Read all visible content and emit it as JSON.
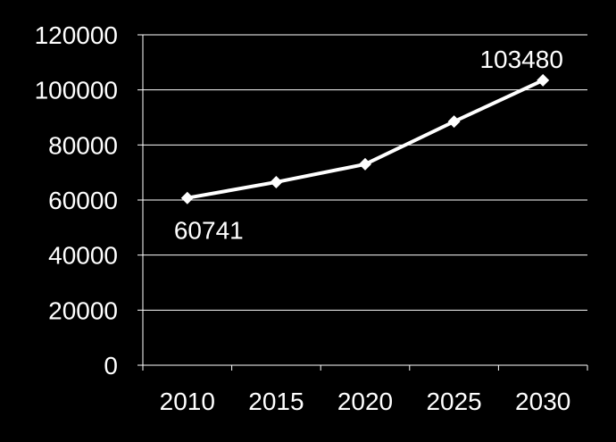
{
  "chart_data": {
    "type": "line",
    "categories": [
      "2010",
      "2015",
      "2020",
      "2025",
      "2030"
    ],
    "series": [
      {
        "values": [
          60741,
          66500,
          73000,
          88500,
          103480
        ],
        "color": "#ffffff",
        "marker": "diamond"
      }
    ],
    "data_labels": [
      {
        "index": 0,
        "text": "60741",
        "position": "below"
      },
      {
        "index": 4,
        "text": "103480",
        "position": "above"
      }
    ],
    "title": "",
    "xlabel": "",
    "ylabel": "",
    "ylim": [
      0,
      120000
    ],
    "yticks": [
      "0",
      "20000",
      "40000",
      "60000",
      "80000",
      "100000",
      "120000"
    ],
    "grid": "horizontal",
    "legend": "none",
    "colors": {
      "background": "#000000",
      "text": "#ffffff",
      "grid": "#ffffff",
      "line": "#ffffff"
    }
  }
}
